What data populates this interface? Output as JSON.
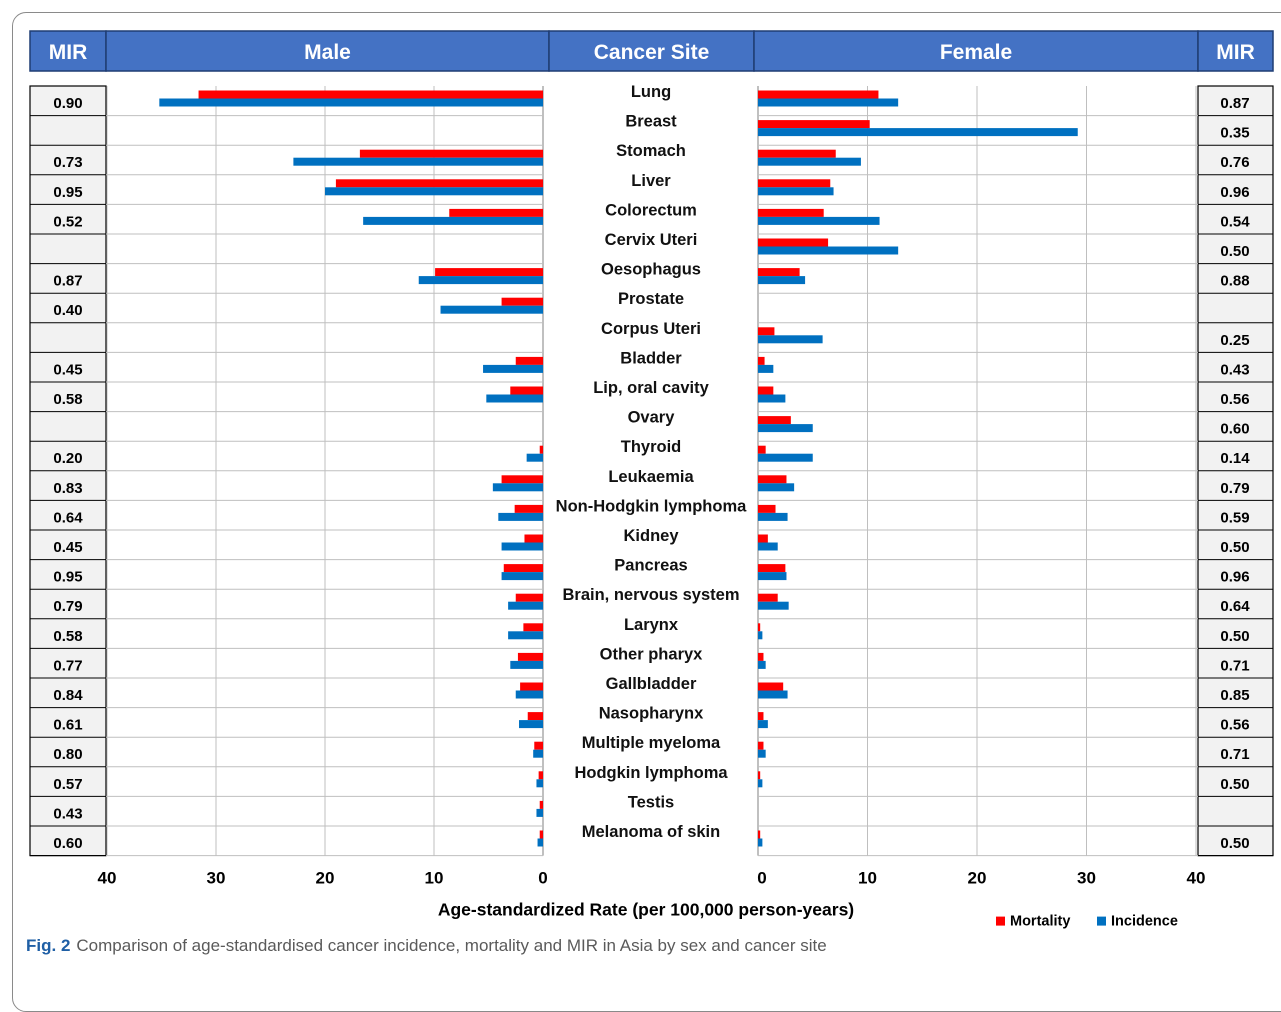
{
  "headers": {
    "mir_left": "MIR",
    "male": "Male",
    "site": "Cancer Site",
    "female": "Female",
    "mir_right": "MIR"
  },
  "caption": {
    "label": "Fig. 2",
    "text": "Comparison of age-standardised cancer incidence, mortality and MIR in Asia by sex and cancer site"
  },
  "colors": {
    "header_bg": "#4472c4",
    "mortality": "#ff0000",
    "incidence": "#0070c0",
    "mir_fill": "#f2f2f2",
    "grid": "#bfbfbf"
  },
  "chart_data": {
    "type": "bar",
    "orientation": "horizontal",
    "layout": "back-to-back (male left, female right)",
    "xlabel": "Age-standardized Rate (per 100,000 person-years)",
    "xlim": [
      0,
      40
    ],
    "xticks": [
      40,
      30,
      20,
      10,
      0
    ],
    "female_xticks": [
      0,
      10,
      20,
      30,
      40
    ],
    "grid": true,
    "legend": [
      {
        "name": "Mortality",
        "color": "#ff0000"
      },
      {
        "name": "Incidence",
        "color": "#0070c0"
      }
    ],
    "legend_position": "bottom-right",
    "categories": [
      "Lung",
      "Breast",
      "Stomach",
      "Liver",
      "Colorectum",
      "Cervix Uteri",
      "Oesophagus",
      "Prostate",
      "Corpus Uteri",
      "Bladder",
      "Lip, oral cavity",
      "Ovary",
      "Thyroid",
      "Leukaemia",
      "Non-Hodgkin lymphoma",
      "Kidney",
      "Pancreas",
      "Brain, nervous system",
      "Larynx",
      "Other pharyx",
      "Gallbladder",
      "Nasopharynx",
      "Multiple myeloma",
      "Hodgkin lymphoma",
      "Testis",
      "Melanoma of skin"
    ],
    "male": {
      "mortality": [
        31.6,
        null,
        16.8,
        19.0,
        8.6,
        null,
        9.9,
        3.8,
        null,
        2.5,
        3.0,
        null,
        0.3,
        3.8,
        2.6,
        1.7,
        3.6,
        2.5,
        1.8,
        2.3,
        2.1,
        1.4,
        0.8,
        0.4,
        0.3,
        0.3
      ],
      "incidence": [
        35.2,
        null,
        22.9,
        20.0,
        16.5,
        null,
        11.4,
        9.4,
        null,
        5.5,
        5.2,
        null,
        1.5,
        4.6,
        4.1,
        3.8,
        3.8,
        3.2,
        3.2,
        3.0,
        2.5,
        2.2,
        0.9,
        0.6,
        0.6,
        0.5
      ],
      "mir": [
        "0.90",
        "",
        "0.73",
        "0.95",
        "0.52",
        "",
        "0.87",
        "0.40",
        "",
        "0.45",
        "0.58",
        "",
        "0.20",
        "0.83",
        "0.64",
        "0.45",
        "0.95",
        "0.79",
        "0.58",
        "0.77",
        "0.84",
        "0.61",
        "0.80",
        "0.57",
        "0.43",
        "0.60"
      ]
    },
    "female": {
      "mortality": [
        11.0,
        10.2,
        7.1,
        6.6,
        6.0,
        6.4,
        3.8,
        null,
        1.5,
        0.6,
        1.4,
        3.0,
        0.7,
        2.6,
        1.6,
        0.9,
        2.5,
        1.8,
        0.2,
        0.5,
        2.3,
        0.5,
        0.5,
        0.2,
        null,
        0.2
      ],
      "incidence": [
        12.8,
        29.2,
        9.4,
        6.9,
        11.1,
        12.8,
        4.3,
        null,
        5.9,
        1.4,
        2.5,
        5.0,
        5.0,
        3.3,
        2.7,
        1.8,
        2.6,
        2.8,
        0.4,
        0.7,
        2.7,
        0.9,
        0.7,
        0.4,
        null,
        0.4
      ],
      "mir": [
        "0.87",
        "0.35",
        "0.76",
        "0.96",
        "0.54",
        "0.50",
        "0.88",
        "",
        "0.25",
        "0.43",
        "0.56",
        "0.60",
        "0.14",
        "0.79",
        "0.59",
        "0.50",
        "0.96",
        "0.64",
        "0.50",
        "0.71",
        "0.85",
        "0.56",
        "0.71",
        "0.50",
        "",
        "0.50"
      ]
    }
  }
}
